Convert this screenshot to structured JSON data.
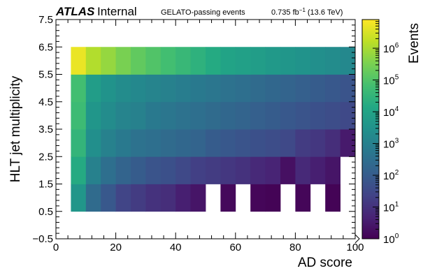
{
  "chart_data": {
    "type": "heatmap",
    "title": "",
    "header": {
      "experiment": "ATLAS",
      "status": "Internal",
      "selection": "GELATO-passing events",
      "lumi_prefix": "0.735 fb",
      "lumi_exponent": "−1",
      "energy": "(13.6 TeV)"
    },
    "xlabel": "AD score",
    "ylabel": "HLT jet multiplicity",
    "zlabel": "Events",
    "xlim": [
      0,
      100
    ],
    "ylim": [
      -0.5,
      7.5
    ],
    "z_scale": "log",
    "zlim": [
      1,
      8000000
    ],
    "x_ticks": [
      "0",
      "20",
      "40",
      "60",
      "80",
      "100"
    ],
    "y_ticks": [
      "−0.5",
      "0.5",
      "1.5",
      "2.5",
      "3.5",
      "4.5",
      "5.5",
      "6.5",
      "7.5"
    ],
    "z_ticks": [
      {
        "base": "10",
        "exp": "0"
      },
      {
        "base": "10",
        "exp": "1"
      },
      {
        "base": "10",
        "exp": "2"
      },
      {
        "base": "10",
        "exp": "3"
      },
      {
        "base": "10",
        "exp": "4"
      },
      {
        "base": "10",
        "exp": "5"
      },
      {
        "base": "10",
        "exp": "6"
      }
    ],
    "x_bin_edges": [
      5,
      10,
      15,
      20,
      25,
      30,
      35,
      40,
      45,
      50,
      55,
      60,
      65,
      70,
      75,
      80,
      85,
      90,
      95,
      100
    ],
    "rows": [
      {
        "y": 1,
        "log10_counts": [
          3.6,
          2.4,
          1.9,
          1.4,
          1.2,
          1.0,
          0.9,
          0.6,
          0.4,
          null,
          0.15,
          null,
          0.1,
          0.05,
          null,
          0.1,
          null,
          0.05,
          null
        ]
      },
      {
        "y": 2,
        "log10_counts": [
          4.2,
          3.0,
          2.5,
          2.2,
          2.0,
          1.8,
          1.7,
          1.5,
          1.3,
          1.2,
          1.1,
          1.0,
          0.8,
          0.7,
          0.3,
          0.8,
          0.6,
          0.4,
          null
        ]
      },
      {
        "y": 3,
        "log10_counts": [
          4.5,
          3.4,
          3.0,
          2.8,
          2.6,
          2.5,
          2.4,
          2.3,
          2.2,
          2.0,
          1.9,
          1.8,
          1.7,
          1.6,
          1.5,
          1.2,
          1.1,
          0.9,
          0.5
        ]
      },
      {
        "y": 4,
        "log10_counts": [
          4.7,
          3.6,
          3.3,
          3.1,
          3.0,
          2.8,
          2.7,
          2.6,
          2.5,
          2.4,
          2.3,
          2.2,
          2.1,
          2.0,
          1.9,
          1.8,
          1.7,
          1.6,
          1.5
        ]
      },
      {
        "y": 5,
        "log10_counts": [
          4.8,
          3.8,
          3.5,
          3.3,
          3.2,
          3.1,
          3.0,
          2.9,
          2.8,
          2.7,
          2.6,
          2.5,
          2.4,
          2.3,
          2.2,
          2.1,
          2.0,
          1.9,
          1.8
        ]
      },
      {
        "y": 6,
        "log10_counts": [
          6.7,
          6.1,
          5.8,
          5.5,
          5.2,
          5.0,
          4.8,
          4.6,
          4.4,
          4.2,
          4.0,
          3.9,
          3.8,
          3.7,
          3.6,
          3.5,
          3.4,
          3.3,
          3.2
        ]
      }
    ],
    "grid": false,
    "colormap": "viridis"
  }
}
